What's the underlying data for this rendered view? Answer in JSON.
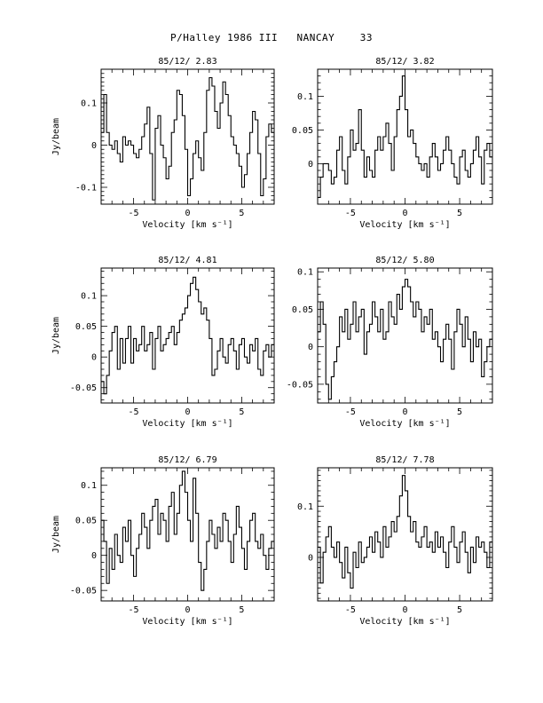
{
  "page": {
    "title": "P/Halley 1986 III   NANCAY    33"
  },
  "chart_data": [
    {
      "type": "line",
      "title": "85/12/ 2.83",
      "xlabel": "Velocity [km s⁻¹]",
      "ylabel": "Jy/beam",
      "xlim": [
        -8,
        8
      ],
      "ylim": [
        -0.14,
        0.18
      ],
      "xticks": [
        -5,
        0,
        5
      ],
      "yticks": [
        -0.1,
        0,
        0.1
      ],
      "ytick_labels": [
        "-0.1",
        "0",
        "0.1"
      ],
      "series": [
        {
          "x_start": -8,
          "x_step": 0.25,
          "values": [
            0.03,
            0.12,
            0.03,
            0,
            -0.01,
            0.01,
            -0.02,
            -0.04,
            0.02,
            0,
            0.01,
            0,
            -0.02,
            -0.03,
            -0.01,
            0.02,
            0.05,
            0.09,
            -0.02,
            -0.13,
            0.04,
            0.07,
            0,
            -0.03,
            -0.08,
            -0.05,
            0.03,
            0.06,
            0.13,
            0.12,
            0.07,
            -0.01,
            -0.12,
            -0.08,
            -0.02,
            0.01,
            -0.03,
            -0.06,
            0.03,
            0.13,
            0.16,
            0.14,
            0.08,
            0.04,
            0.1,
            0.15,
            0.12,
            0.07,
            0.02,
            0,
            -0.02,
            -0.05,
            -0.1,
            -0.07,
            -0.02,
            0.03,
            0.08,
            0.06,
            -0.02,
            -0.12,
            -0.08,
            0.02,
            0.05,
            0.03
          ]
        }
      ]
    },
    {
      "type": "line",
      "title": "85/12/ 3.82",
      "xlabel": "Velocity [km s⁻¹]",
      "ylabel": "",
      "xlim": [
        -8,
        8
      ],
      "ylim": [
        -0.06,
        0.14
      ],
      "xticks": [
        -5,
        0,
        5
      ],
      "yticks": [
        0,
        0.05,
        0.1
      ],
      "ytick_labels": [
        "0",
        "0.05",
        "0.1"
      ],
      "series": [
        {
          "x_start": -8,
          "x_step": 0.25,
          "values": [
            -0.05,
            -0.02,
            0,
            0,
            -0.01,
            -0.03,
            -0.02,
            0.02,
            0.04,
            -0.01,
            -0.03,
            0.01,
            0.05,
            0.02,
            0.03,
            0.08,
            0.02,
            -0.02,
            0.01,
            -0.01,
            -0.02,
            0.02,
            0.04,
            0.02,
            0.04,
            0.06,
            0.03,
            -0.01,
            0.04,
            0.08,
            0.1,
            0.13,
            0.08,
            0.04,
            0.05,
            0.03,
            0.01,
            0,
            -0.01,
            0,
            -0.02,
            0.01,
            0.03,
            0.01,
            -0.01,
            0,
            0.02,
            0.04,
            0.02,
            0,
            -0.02,
            -0.03,
            0.01,
            0.02,
            -0.01,
            -0.02,
            0,
            0.02,
            0.04,
            0.01,
            -0.03,
            0.02,
            0.03,
            0.01
          ]
        }
      ]
    },
    {
      "type": "line",
      "title": "85/12/ 4.81",
      "xlabel": "Velocity [km s⁻¹]",
      "ylabel": "Jy/beam",
      "xlim": [
        -8,
        8
      ],
      "ylim": [
        -0.075,
        0.145
      ],
      "xticks": [
        -5,
        0,
        5
      ],
      "yticks": [
        -0.05,
        0,
        0.05,
        0.1
      ],
      "ytick_labels": [
        "-0.05",
        "0",
        "0.05",
        "0.1"
      ],
      "series": [
        {
          "x_start": -8,
          "x_step": 0.25,
          "values": [
            -0.04,
            -0.06,
            -0.03,
            0.01,
            0.04,
            0.05,
            -0.02,
            0.03,
            -0.01,
            0.03,
            0.05,
            -0.01,
            0.03,
            0.01,
            0.02,
            0.05,
            0.01,
            0.02,
            0.04,
            -0.02,
            0.03,
            0.05,
            0.01,
            0.02,
            0.03,
            0.04,
            0.05,
            0.02,
            0.04,
            0.06,
            0.07,
            0.08,
            0.1,
            0.12,
            0.13,
            0.11,
            0.09,
            0.07,
            0.08,
            0.06,
            0.03,
            -0.03,
            -0.02,
            0.01,
            0.03,
            0,
            -0.01,
            0.02,
            0.03,
            0.01,
            -0.02,
            0.02,
            0.03,
            0,
            -0.01,
            0.02,
            0.01,
            0.03,
            -0.02,
            -0.03,
            0.01,
            0.02,
            0,
            0.02
          ]
        }
      ]
    },
    {
      "type": "line",
      "title": "85/12/ 5.80",
      "xlabel": "Velocity [km s⁻¹]",
      "ylabel": "",
      "xlim": [
        -8,
        8
      ],
      "ylim": [
        -0.075,
        0.105
      ],
      "xticks": [
        -5,
        0,
        5
      ],
      "yticks": [
        -0.05,
        0,
        0.05,
        0.1
      ],
      "ytick_labels": [
        "-0.05",
        "0",
        "0.05",
        "0.1"
      ],
      "series": [
        {
          "x_start": -8,
          "x_step": 0.25,
          "values": [
            0.02,
            0.06,
            0.03,
            -0.05,
            -0.07,
            -0.04,
            -0.02,
            0,
            0.04,
            0.02,
            0.05,
            0.01,
            0.03,
            0.06,
            0.02,
            0.04,
            0.05,
            -0.01,
            0.02,
            0.03,
            0.06,
            0.04,
            0.02,
            0.05,
            0.01,
            0.02,
            0.06,
            0.04,
            0.03,
            0.07,
            0.05,
            0.08,
            0.09,
            0.08,
            0.06,
            0.04,
            0.06,
            0.05,
            0.02,
            0.04,
            0.03,
            0.05,
            0.01,
            0.02,
            0,
            -0.02,
            0.01,
            0.03,
            0.01,
            -0.03,
            0.02,
            0.05,
            0.03,
            0,
            0.04,
            0.01,
            -0.02,
            0.02,
            0,
            0.01,
            -0.04,
            -0.02,
            0,
            0.01
          ]
        }
      ]
    },
    {
      "type": "line",
      "title": "85/12/ 6.79",
      "xlabel": "Velocity [km s⁻¹]",
      "ylabel": "Jy/beam",
      "xlim": [
        -8,
        8
      ],
      "ylim": [
        -0.065,
        0.125
      ],
      "xticks": [
        -5,
        0,
        5
      ],
      "yticks": [
        -0.05,
        0,
        0.05,
        0.1
      ],
      "ytick_labels": [
        "-0.05",
        "0",
        "0.05",
        "0.1"
      ],
      "series": [
        {
          "x_start": -8,
          "x_step": 0.25,
          "values": [
            0.05,
            0.02,
            -0.04,
            0.01,
            -0.02,
            0.03,
            0,
            -0.01,
            0.04,
            0.02,
            0.05,
            0,
            -0.03,
            0.01,
            0.03,
            0.06,
            0.04,
            0.01,
            0.05,
            0.07,
            0.08,
            0.03,
            0.06,
            0.05,
            0.02,
            0.07,
            0.09,
            0.03,
            0.06,
            0.1,
            0.12,
            0.09,
            0.05,
            0.02,
            0.11,
            0.06,
            -0.01,
            -0.05,
            -0.02,
            0.02,
            0.05,
            0.03,
            0.01,
            0.04,
            0.02,
            0.06,
            0.05,
            0.02,
            -0.01,
            0.03,
            0.07,
            0.04,
            0.01,
            -0.02,
            0.02,
            0.05,
            0.06,
            0.02,
            0.01,
            0.03,
            0,
            -0.02,
            0.01,
            0.02
          ]
        }
      ]
    },
    {
      "type": "line",
      "title": "85/12/ 7.78",
      "xlabel": "Velocity [km s⁻¹]",
      "ylabel": "",
      "xlim": [
        -8,
        8
      ],
      "ylim": [
        -0.085,
        0.175
      ],
      "xticks": [
        -5,
        0,
        5
      ],
      "yticks": [
        0,
        0.1
      ],
      "ytick_labels": [
        "0",
        "0.1"
      ],
      "series": [
        {
          "x_start": -8,
          "x_step": 0.25,
          "values": [
            0.02,
            -0.05,
            0.01,
            0.04,
            0.06,
            0.02,
            0,
            0.03,
            -0.01,
            -0.04,
            0.02,
            -0.03,
            -0.06,
            0.01,
            -0.02,
            0.03,
            -0.01,
            0,
            0.02,
            0.04,
            0.01,
            0.05,
            0.03,
            0,
            0.06,
            0.02,
            0.04,
            0.07,
            0.05,
            0.08,
            0.12,
            0.16,
            0.13,
            0.08,
            0.05,
            0.07,
            0.03,
            0.02,
            0.04,
            0.06,
            0.02,
            0.03,
            0.01,
            0.05,
            0.02,
            0.04,
            0.01,
            -0.02,
            0.03,
            0.06,
            0.02,
            -0.01,
            0.03,
            0.05,
            0.01,
            -0.03,
            0.02,
            -0.01,
            0.04,
            0.02,
            0.03,
            0.01,
            -0.02,
            0.03
          ]
        }
      ]
    }
  ]
}
